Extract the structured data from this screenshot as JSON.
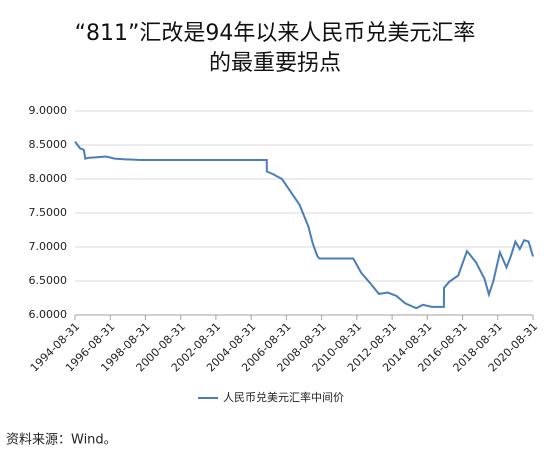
{
  "chart_data": {
    "type": "line",
    "title": [
      "“811”汇改是94年以来人民币兑美元汇率",
      "的最重要拐点"
    ],
    "x": [
      "1994-08-31",
      "1994-12-15",
      "1995-03-01",
      "1995-04-01",
      "1995-06-01",
      "1995-12-01",
      "1996-06-01",
      "1996-12-01",
      "1997-06-01",
      "1998-06-01",
      "2000-06-01",
      "2002-06-01",
      "2004-06-01",
      "2005-07-20",
      "2005-07-22",
      "2005-12-01",
      "2006-06-01",
      "2006-12-01",
      "2007-06-01",
      "2007-12-01",
      "2008-03-01",
      "2008-06-01",
      "2008-07-15",
      "2009-06-01",
      "2010-06-18",
      "2010-12-01",
      "2011-06-01",
      "2011-12-01",
      "2012-06-01",
      "2012-12-01",
      "2013-06-01",
      "2014-01-15",
      "2014-06-01",
      "2014-12-01",
      "2015-08-10",
      "2015-08-13",
      "2015-12-01",
      "2016-06-01",
      "2016-12-01",
      "2017-06-01",
      "2017-12-01",
      "2018-03-01",
      "2018-06-01",
      "2018-10-15",
      "2019-03-01",
      "2019-06-01",
      "2019-09-01",
      "2019-12-01",
      "2020-03-01",
      "2020-06-01",
      "2020-08-31"
    ],
    "series": [
      {
        "name": "人民币兑美元汇率中间价",
        "color": "#4a7ebb",
        "values": [
          8.55,
          8.45,
          8.43,
          8.3,
          8.31,
          8.32,
          8.33,
          8.3,
          8.29,
          8.28,
          8.28,
          8.28,
          8.28,
          8.28,
          8.11,
          8.07,
          8.0,
          7.81,
          7.62,
          7.3,
          7.05,
          6.87,
          6.83,
          6.83,
          6.83,
          6.62,
          6.47,
          6.31,
          6.33,
          6.28,
          6.17,
          6.1,
          6.15,
          6.12,
          6.12,
          6.4,
          6.49,
          6.58,
          6.94,
          6.78,
          6.53,
          6.3,
          6.5,
          6.92,
          6.7,
          6.87,
          7.08,
          6.97,
          7.1,
          7.08,
          6.86
        ]
      }
    ],
    "xlim": [
      "1994-08-31",
      "2020-08-31"
    ],
    "xticks": [
      "1994-08-31",
      "1996-08-31",
      "1998-08-31",
      "2000-08-31",
      "2002-08-31",
      "2004-08-31",
      "2006-08-31",
      "2008-08-31",
      "2010-08-31",
      "2012-08-31",
      "2014-08-31",
      "2016-08-31",
      "2018-08-31",
      "2020-08-31"
    ],
    "ylim": [
      6,
      9
    ],
    "yticks": [
      {
        "value": 6,
        "label": "6.0000"
      },
      {
        "value": 6.5,
        "label": "6.5000"
      },
      {
        "value": 7,
        "label": "7.0000"
      },
      {
        "value": 7.5,
        "label": "7.5000"
      },
      {
        "value": 8,
        "label": "8.0000"
      },
      {
        "value": 8.5,
        "label": "8.5000"
      },
      {
        "value": 9,
        "label": "9.0000"
      }
    ],
    "grid": true,
    "legend": "bottom",
    "source": "资料来源：Wind。"
  }
}
